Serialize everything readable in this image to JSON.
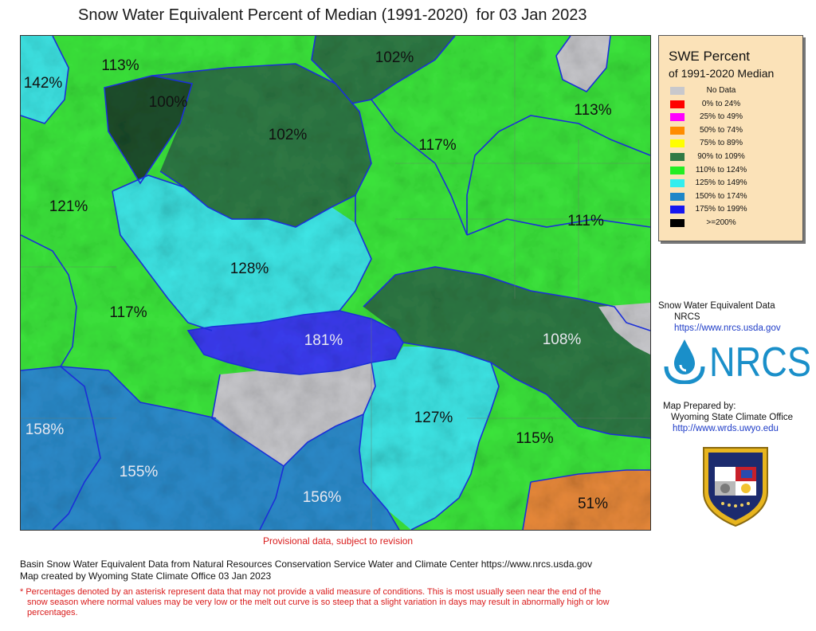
{
  "header": {
    "title": "Snow Water Equivalent Percent of Median (1991-2020)",
    "date_text": "for 03 Jan 2023"
  },
  "colors": {
    "no_data": "#c8c8cc",
    "p0_24": "#ff0000",
    "p25_49": "#ff00ff",
    "p50_74": "#ff8c00",
    "p75_89": "#ffff00",
    "p90_109": "#2f7a45",
    "p110_124": "#3ce63c",
    "p125_149": "#3ee6e6",
    "p150_174": "#2c8ccc",
    "p175_199": "#1c20ee",
    "p200": "#000000",
    "boundary": "#1b2fd8"
  },
  "legend": {
    "title_line1": "SWE Percent",
    "title_line2": "of 1991-2020 Median",
    "items": [
      {
        "label": "No Data",
        "color": "#c8c8cc"
      },
      {
        "label": "0% to  24%",
        "color": "#ff0000"
      },
      {
        "label": "25% to  49%",
        "color": "#ff00ff"
      },
      {
        "label": "50% to  74%",
        "color": "#ff8c00"
      },
      {
        "label": "75% to  89%",
        "color": "#ffff00"
      },
      {
        "label": "90% to 109%",
        "color": "#2f7a45"
      },
      {
        "label": "110% to 124%",
        "color": "#22ee22"
      },
      {
        "label": "125% to 149%",
        "color": "#33eeee"
      },
      {
        "label": "150% to 174%",
        "color": "#1e86c8"
      },
      {
        "label": "175% to 199%",
        "color": "#1616f0"
      },
      {
        "label": ">=200%",
        "color": "#000000"
      }
    ]
  },
  "basins": [
    {
      "label": "142%"
    },
    {
      "label": "113%"
    },
    {
      "label": "100%"
    },
    {
      "label": "102%"
    },
    {
      "label": "102%"
    },
    {
      "label": "117%"
    },
    {
      "label": "113%"
    },
    {
      "label": "121%"
    },
    {
      "label": "111%"
    },
    {
      "label": "128%"
    },
    {
      "label": "117%"
    },
    {
      "label": "181%"
    },
    {
      "label": "108%"
    },
    {
      "label": "158%"
    },
    {
      "label": "127%"
    },
    {
      "label": "115%"
    },
    {
      "label": "155%"
    },
    {
      "label": "156%"
    },
    {
      "label": "51%"
    }
  ],
  "source": {
    "line1": "Snow Water Equivalent Data",
    "line2": "NRCS",
    "link": "https://www.nrcs.usda.gov"
  },
  "logo_text": "NRCS",
  "prepared": {
    "line1": "Map Prepared by:",
    "line2": "Wyoming State Climate Office",
    "link": "http://www.wrds.uwyo.edu"
  },
  "provisional": "Provisional data, subject to revision",
  "footer": {
    "line1": "Basin Snow Water Equivalent Data from Natural Resources Conservation Service Water and Climate Center https://www.nrcs.usda.gov",
    "line2": "Map created by Wyoming State Climate Office 03 Jan 2023",
    "note_line1": "* Percentages denoted by an asterisk represent data that may not provide a valid measure of conditions.  This is most usually seen near the end of the",
    "note_line2": "snow season where normal values may be very low or the melt out curve is so steep that a slight variation in days may result in abnormally high or low",
    "note_line3": "percentages."
  }
}
